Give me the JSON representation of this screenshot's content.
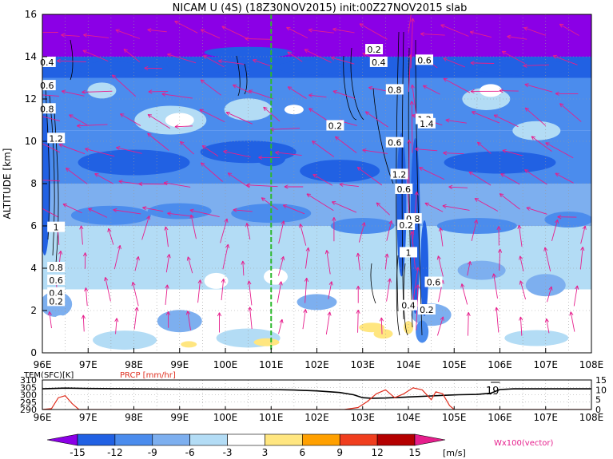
{
  "chart_data": [
    {
      "type": "heatmap",
      "title": "NICAM U (4S) (18Z30NOV2015) init:00Z27NOV2015 slab",
      "ylabel": "ALTITUDE [km]",
      "xlim": [
        96,
        108
      ],
      "ylim": [
        0,
        16
      ],
      "x_ticks": [
        "96E",
        "97E",
        "98E",
        "99E",
        "100E",
        "101E",
        "102E",
        "103E",
        "104E",
        "105E",
        "106E",
        "107E",
        "108E"
      ],
      "y_ticks": [
        "0",
        "2",
        "4",
        "6",
        "8",
        "10",
        "12",
        "14",
        "16"
      ],
      "grid": true,
      "marker_line_lon": 101,
      "contour_labels": [
        "0.2",
        "0.4",
        "0.6",
        "0.8",
        "1",
        "1.2",
        "1.4"
      ],
      "vector_label": "Wx100(vector)",
      "colorbar": {
        "levels": [
          "-15",
          "-12",
          "-9",
          "-6",
          "-3",
          "3",
          "6",
          "9",
          "12",
          "15"
        ],
        "unit": "[m/s]",
        "colors": [
          "#8b00e6",
          "#2161e3",
          "#4b8ced",
          "#7dafef",
          "#b3dcf5",
          "#ffffff",
          "#ffe680",
          "#ffa000",
          "#f03e1e",
          "#b40000",
          "#e61e8c"
        ]
      }
    },
    {
      "type": "line",
      "xlim": [
        96,
        108
      ],
      "x_ticks": [
        "96E",
        "97E",
        "98E",
        "99E",
        "100E",
        "101E",
        "102E",
        "103E",
        "104E",
        "105E",
        "106E",
        "107E",
        "108E"
      ],
      "left_axis": {
        "label": "TEM(SFC)[K]",
        "ticks": [
          "290",
          "295",
          "300",
          "305",
          "310"
        ],
        "range": [
          290,
          310
        ]
      },
      "right_axis": {
        "label": "PRCP [mm/hr]",
        "ticks": [
          "0",
          "5",
          "10",
          "15"
        ],
        "range": [
          0,
          15
        ]
      },
      "annotation": "19",
      "series": [
        {
          "name": "TEM(SFC)[K]",
          "color": "#000000",
          "x": [
            96,
            96.5,
            97,
            98,
            99,
            100,
            101,
            101.5,
            102,
            102.5,
            102.8,
            103,
            103.2,
            103.5,
            104,
            104.5,
            104.9,
            105.1,
            105.5,
            105.8,
            106,
            106.3,
            107,
            108
          ],
          "y": [
            304,
            304.5,
            304.2,
            304,
            303.8,
            303.6,
            303.5,
            303.2,
            302.6,
            301.5,
            300,
            298,
            297.6,
            297.8,
            298.5,
            299.2,
            299.8,
            300,
            300.2,
            301,
            303.5,
            304,
            304,
            304
          ]
        },
        {
          "name": "PRCP [mm/hr]",
          "color": "#e03020",
          "x": [
            96,
            96.2,
            96.35,
            96.5,
            96.65,
            96.8,
            97,
            98,
            99,
            100,
            101,
            102,
            102.6,
            102.9,
            103.1,
            103.3,
            103.5,
            103.7,
            103.9,
            104.1,
            104.3,
            104.5,
            104.6,
            104.75,
            104.9,
            105,
            105.2,
            106,
            107,
            108
          ],
          "y": [
            0,
            0.5,
            6,
            7,
            3,
            0,
            0,
            0,
            0,
            0,
            0,
            0,
            0,
            1,
            4,
            8,
            10,
            6,
            8,
            11,
            10,
            5,
            9,
            8,
            2,
            0,
            0,
            0,
            0,
            0
          ]
        }
      ]
    }
  ]
}
